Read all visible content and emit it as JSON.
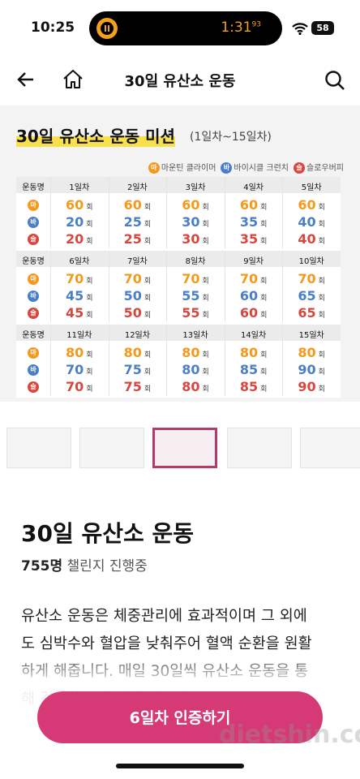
{
  "status_bar": {
    "time": "10:25",
    "timer": "1:31",
    "timer_fraction": "93",
    "battery": "58"
  },
  "nav": {
    "title": "30일 유산소 운동"
  },
  "banner": {
    "title": "30일 유산소 운동 미션",
    "subtitle": "(1일차~15일차)",
    "legend": [
      {
        "badge": "마",
        "label": "마운틴 클라이머",
        "color": "#f39a1e"
      },
      {
        "badge": "바",
        "label": "바이시클 크런치",
        "color": "#4a7fc8"
      },
      {
        "badge": "슬",
        "label": "슬로우버피",
        "color": "#d8473f"
      }
    ],
    "table": {
      "header": "운동명",
      "unit": "회",
      "blocks": [
        {
          "days": [
            "1일차",
            "2일차",
            "3일차",
            "4일차",
            "5일차"
          ],
          "rows": [
            {
              "badge": "마",
              "values": [
                60,
                60,
                60,
                60,
                60
              ]
            },
            {
              "badge": "바",
              "values": [
                20,
                25,
                30,
                35,
                40
              ]
            },
            {
              "badge": "슬",
              "values": [
                20,
                25,
                30,
                35,
                40
              ]
            }
          ]
        },
        {
          "days": [
            "6일차",
            "7일차",
            "8일차",
            "9일차",
            "10일차"
          ],
          "rows": [
            {
              "badge": "마",
              "values": [
                70,
                70,
                70,
                70,
                70
              ]
            },
            {
              "badge": "바",
              "values": [
                45,
                50,
                55,
                60,
                65
              ]
            },
            {
              "badge": "슬",
              "values": [
                45,
                50,
                55,
                60,
                65
              ]
            }
          ]
        },
        {
          "days": [
            "11일차",
            "12일차",
            "13일차",
            "14일차",
            "15일차"
          ],
          "rows": [
            {
              "badge": "마",
              "values": [
                80,
                80,
                80,
                80,
                80
              ]
            },
            {
              "badge": "바",
              "values": [
                70,
                75,
                80,
                85,
                90
              ]
            },
            {
              "badge": "슬",
              "values": [
                70,
                75,
                80,
                85,
                90
              ]
            }
          ]
        }
      ]
    }
  },
  "challenge": {
    "title": "30일 유산소 운동",
    "count": "755명",
    "status": "챌린지 진행중",
    "description": [
      "유산소 운동은 체중관리에 효과적이며 그 외에",
      "도 심박수와 혈압을 낮춰주어 혈액 순환을 원활",
      "하게 해줍니다. 매일 30일씩 유산소 운동을 통",
      "해 건강한 몸을 만들어보세요."
    ]
  },
  "button": {
    "label": "6일차 인증하기"
  },
  "watermark": "dietshin.com"
}
